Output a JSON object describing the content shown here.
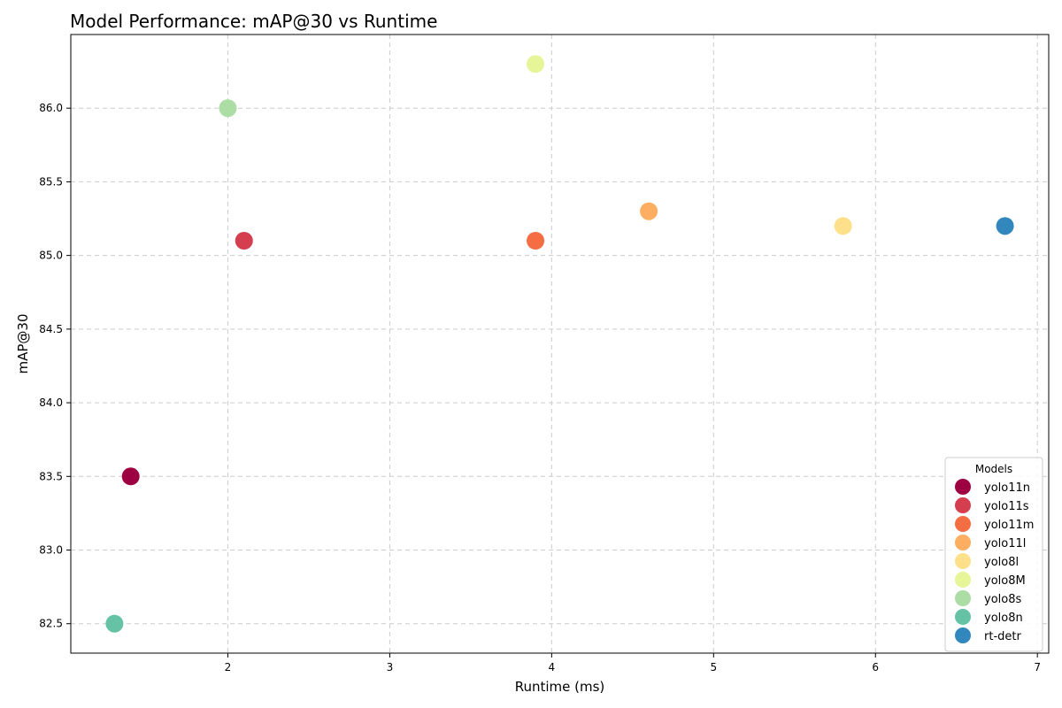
{
  "chart_data": {
    "type": "scatter",
    "title": "Model Performance: mAP@30 vs Runtime",
    "xlabel": "Runtime (ms)",
    "ylabel": "mAP@30",
    "xlim": [
      1.03,
      7.07
    ],
    "ylim": [
      82.3,
      86.5
    ],
    "xticks": [
      "2",
      "3",
      "4",
      "5",
      "6",
      "7"
    ],
    "yticks": [
      "82.5",
      "83.0",
      "83.5",
      "84.0",
      "84.5",
      "85.0",
      "85.5",
      "86.0"
    ],
    "grid": true,
    "legend": {
      "title": "Models",
      "position": "lower-right"
    },
    "series": [
      {
        "name": "yolo11n",
        "x": 1.4,
        "y": 83.5,
        "color": "#9e0142"
      },
      {
        "name": "yolo11s",
        "x": 2.1,
        "y": 85.1,
        "color": "#d53e4f"
      },
      {
        "name": "yolo11m",
        "x": 3.9,
        "y": 85.1,
        "color": "#f46d43"
      },
      {
        "name": "yolo11l",
        "x": 4.6,
        "y": 85.3,
        "color": "#fdae61"
      },
      {
        "name": "yolo8l",
        "x": 5.8,
        "y": 85.2,
        "color": "#fee08b"
      },
      {
        "name": "yolo8M",
        "x": 3.9,
        "y": 86.3,
        "color": "#e6f598"
      },
      {
        "name": "yolo8s",
        "x": 2.0,
        "y": 86.0,
        "color": "#abdda4"
      },
      {
        "name": "yolo8n",
        "x": 1.3,
        "y": 82.5,
        "color": "#66c2a5"
      },
      {
        "name": "rt-detr",
        "x": 6.8,
        "y": 85.2,
        "color": "#3288bd"
      }
    ]
  }
}
